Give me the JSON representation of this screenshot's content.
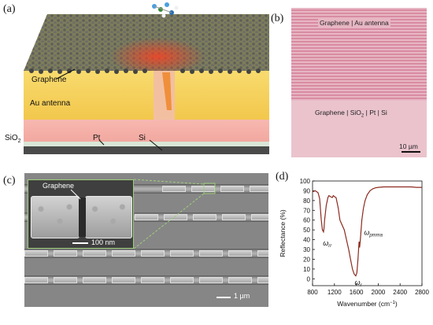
{
  "figure": {
    "panel_a": {
      "label": "(a)",
      "graphene_label": "Graphene",
      "au_label": "Au antenna",
      "sio2_label": "SiO",
      "sio2_sub": "2",
      "pt_label": "Pt",
      "si_label": "Si"
    },
    "panel_b": {
      "label": "(b)",
      "top_text": "Graphene | Au antenna",
      "bottom_text_1": "Graphene | SiO",
      "bottom_sub": "2",
      "bottom_text_2": " | Pt | Si",
      "scalebar": "10 µm"
    },
    "panel_c": {
      "label": "(c)",
      "inset_label": "Graphene",
      "inset_scalebar": "100 nm",
      "scalebar": "1 µm"
    },
    "panel_d": {
      "label": "(d)"
    }
  },
  "chart_data": {
    "type": "line",
    "xlabel": "Wavenumber (cm",
    "xlabel_sup": "−1",
    "xlabel_end": ")",
    "ylabel": "Reflectance (%)",
    "xlim": [
      800,
      2800
    ],
    "ylim": [
      -7,
      100
    ],
    "xticks": [
      800,
      1200,
      1600,
      2000,
      2400,
      2800
    ],
    "yticks": [
      0,
      10,
      20,
      30,
      40,
      50,
      60,
      70,
      80,
      90,
      100
    ],
    "color": "#8b2a1f",
    "series": [
      {
        "x": [
          800,
          850,
          900,
          930,
          960,
          980,
          1000,
          1010,
          1020,
          1050,
          1080,
          1100,
          1130,
          1160,
          1180,
          1200,
          1230,
          1270,
          1300,
          1340,
          1380,
          1420,
          1460,
          1500,
          1530,
          1560,
          1590,
          1610,
          1630,
          1650,
          1660,
          1670,
          1680,
          1700,
          1730,
          1760,
          1800,
          1850,
          1900,
          1950,
          2000,
          2100,
          2200,
          2300,
          2400,
          2500,
          2600,
          2700,
          2800
        ],
        "y": [
          89,
          90,
          88,
          82,
          60,
          50,
          48,
          52,
          60,
          75,
          83,
          85,
          84,
          83,
          85,
          84,
          83,
          72,
          60,
          55,
          50,
          40,
          30,
          18,
          10,
          5,
          3,
          6,
          20,
          38,
          32,
          38,
          45,
          60,
          72,
          80,
          86,
          90,
          92,
          93,
          93.5,
          94,
          94,
          94,
          94,
          94,
          94,
          93.5,
          93.5
        ]
      }
    ],
    "annotations": [
      {
        "text": "ω",
        "sub": "rr",
        "x": 990,
        "y": 34
      },
      {
        "text": "ω",
        "sub": "pmma",
        "x": 1740,
        "y": 45
      },
      {
        "text": "ω",
        "sub": "r",
        "x": 1570,
        "y": -6
      }
    ]
  }
}
